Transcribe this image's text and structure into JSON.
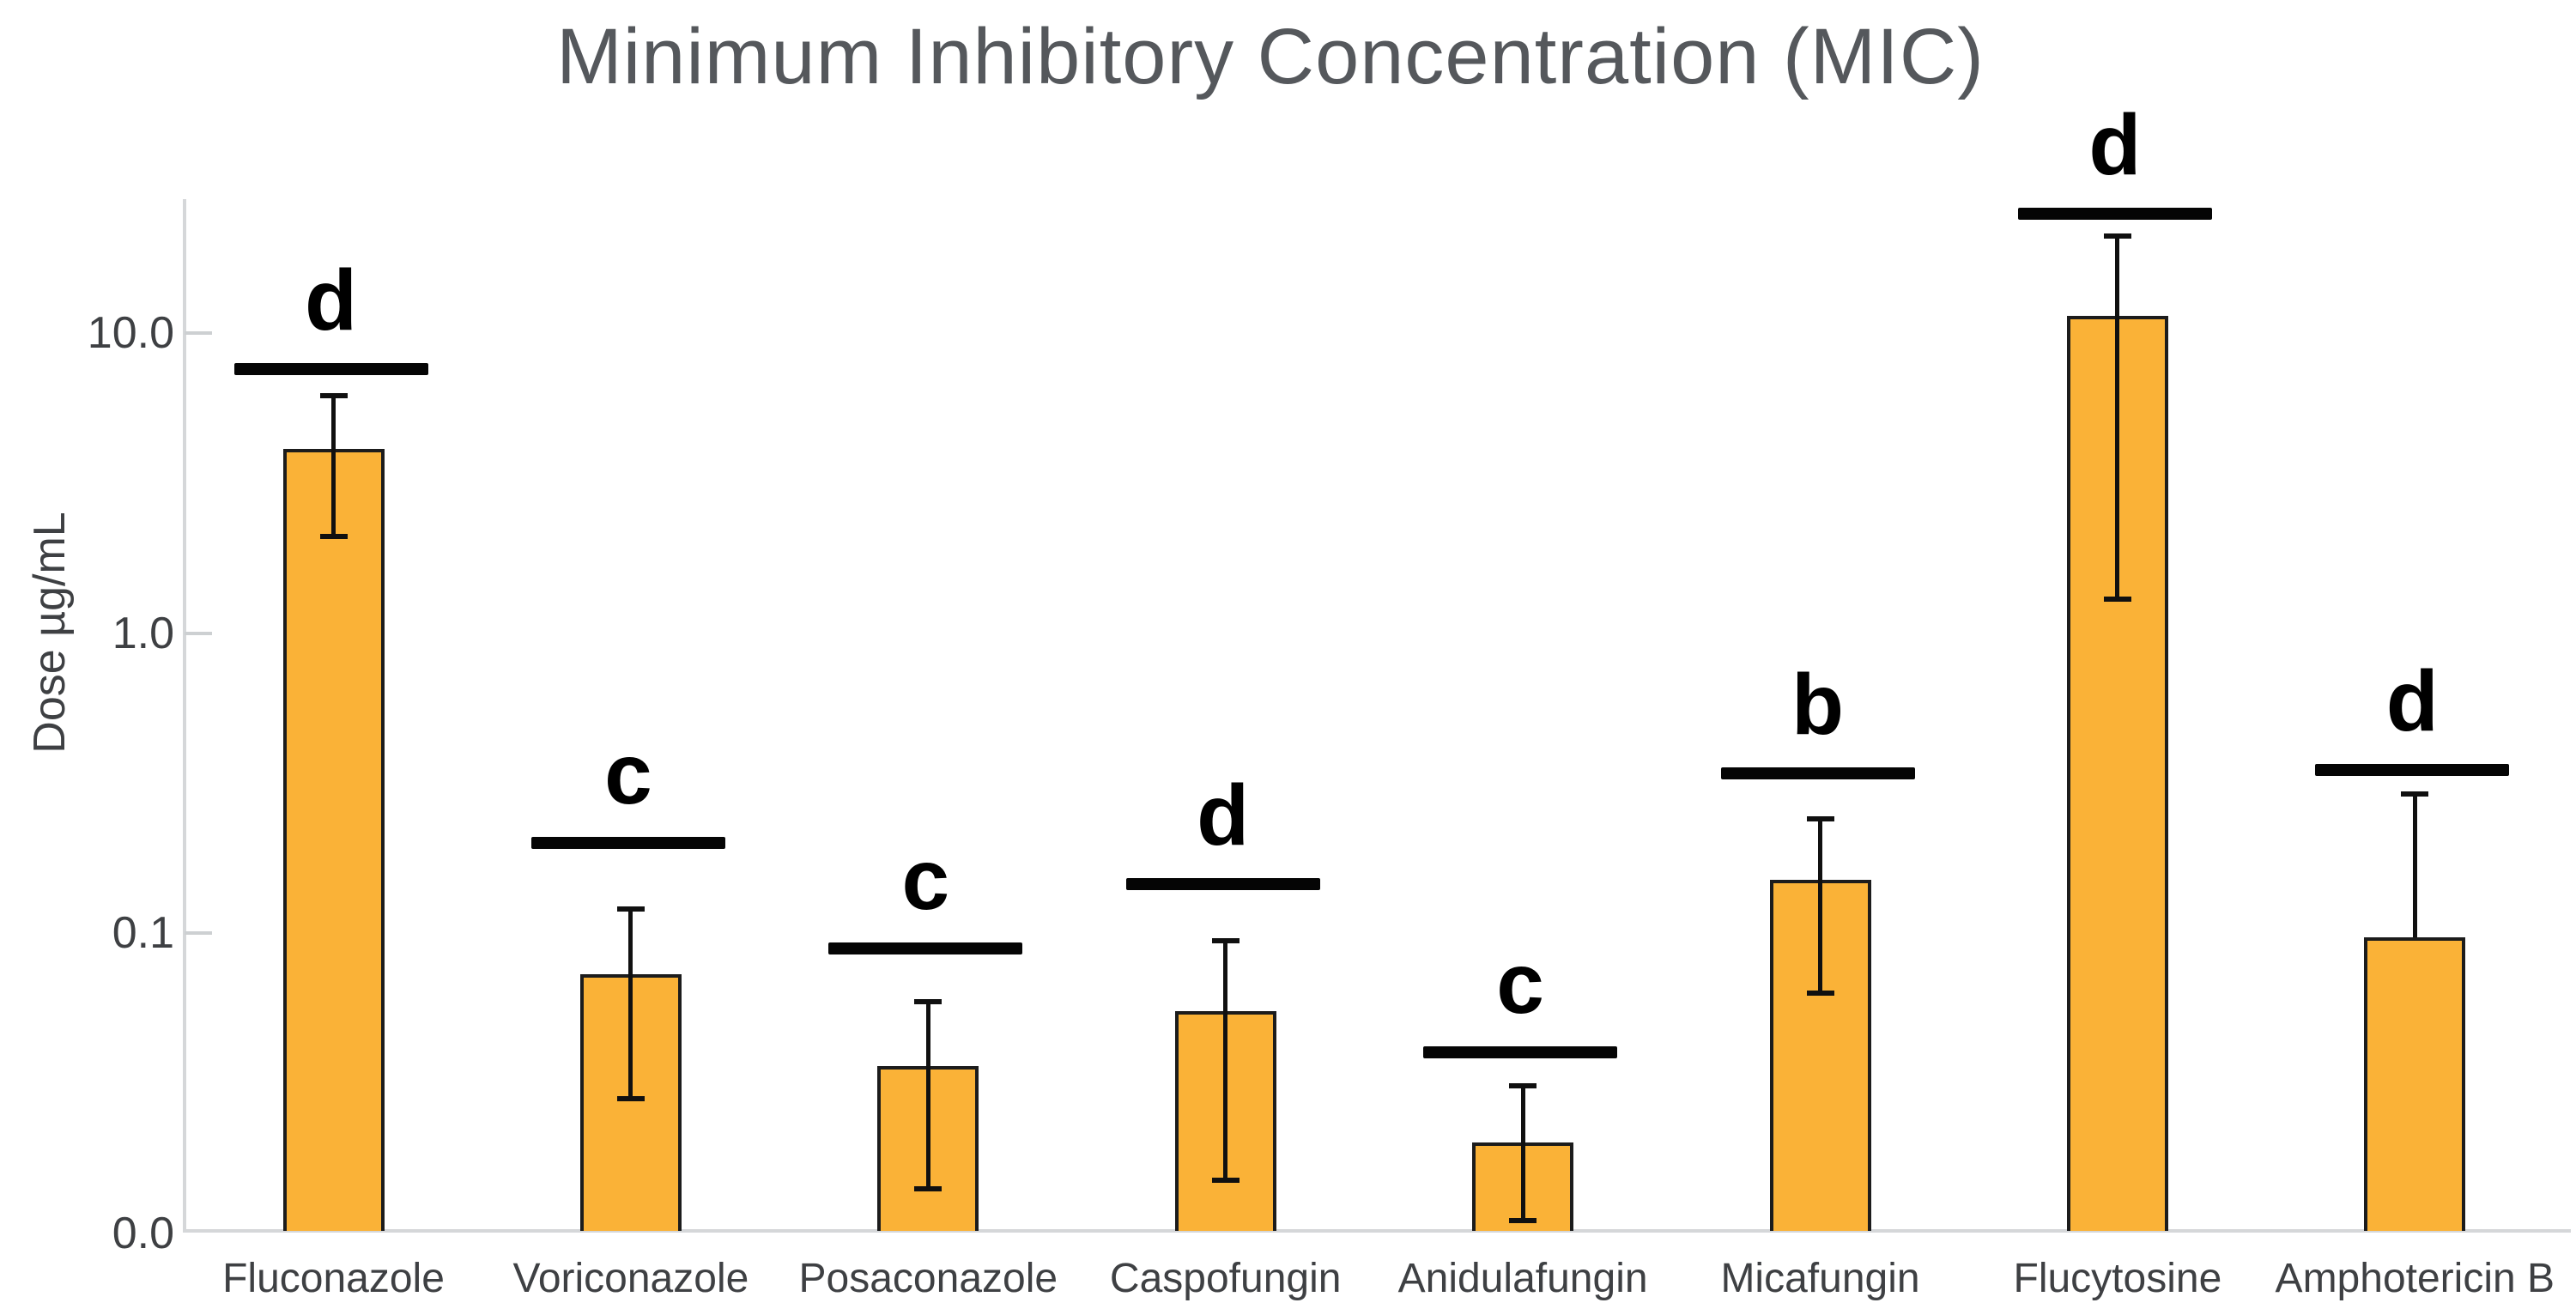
{
  "figure": {
    "title": "Minimum Inhibitory Concentration (MIC)",
    "y_axis_label": "Dose µg/mL"
  },
  "colors": {
    "bar_fill": "#FAB237",
    "bar_edge": "#1C1C1C",
    "error_bar": "#101010",
    "significance_line": "#050505",
    "axis": "#D5D7D9",
    "title_text": "#55585C",
    "tick_text": "#3E4043"
  },
  "chart_data": {
    "type": "bar",
    "log_scale_y": true,
    "title": "Minimum Inhibitory Concentration (MIC)",
    "xlabel": "",
    "ylabel": "Dose µg/mL",
    "ylim": [
      0.01,
      30
    ],
    "grid": false,
    "legend": null,
    "y_ticks": [
      {
        "value": 10,
        "label": "10.0"
      },
      {
        "value": 1,
        "label": "1.0"
      },
      {
        "value": 0.1,
        "label": "0.1"
      },
      {
        "value": 0.01,
        "label": "0.0"
      }
    ],
    "categories": [
      "Fluconazole",
      "Voriconazole",
      "Posaconazole",
      "Caspofungin",
      "Anidulafungin",
      "Micafungin",
      "Flucytosine",
      "Amphotericin B"
    ],
    "values": [
      4.1,
      0.073,
      0.036,
      0.055,
      0.02,
      0.15,
      11.4,
      0.097
    ],
    "error_low": [
      2.1,
      0.028,
      0.014,
      0.015,
      0.011,
      0.063,
      1.3,
      null
    ],
    "error_high": [
      6.2,
      0.12,
      0.059,
      0.094,
      0.031,
      0.24,
      21.0,
      0.29
    ],
    "sig_line_values": [
      7.6,
      0.2,
      0.089,
      0.146,
      0.04,
      0.34,
      25.0,
      0.35
    ],
    "sig_letters": [
      "d",
      "c",
      "c",
      "d",
      "c",
      "b",
      "d",
      "d"
    ],
    "units": "µg/mL"
  }
}
